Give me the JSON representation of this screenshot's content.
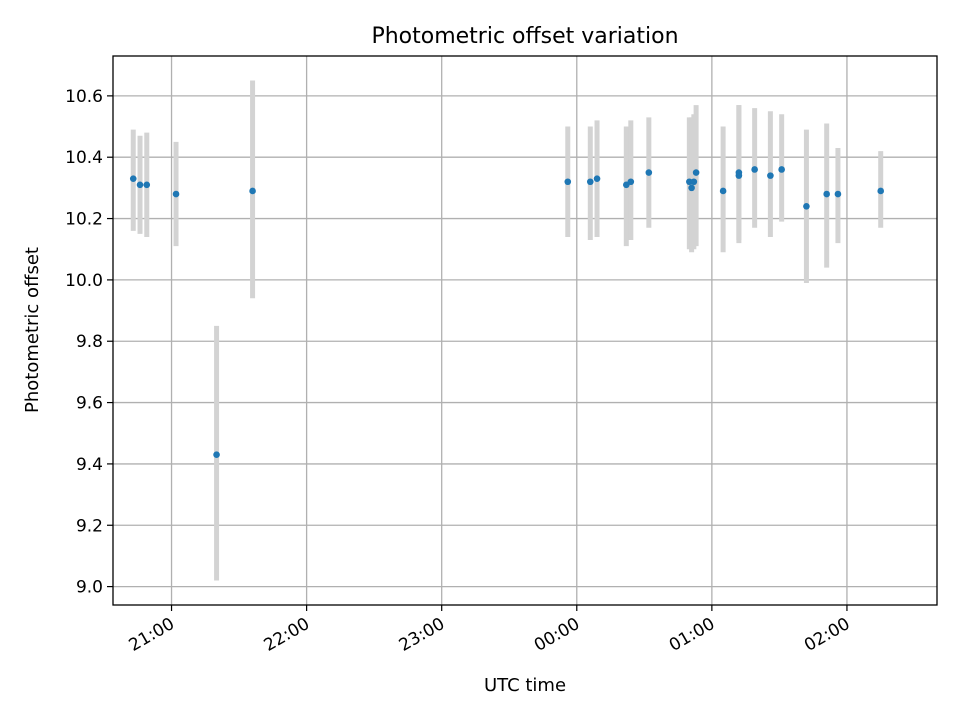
{
  "chart_data": {
    "type": "scatter",
    "title": "Photometric offset variation",
    "xlabel": "UTC time",
    "ylabel": "Photometric offset",
    "grid": true,
    "legend": "none",
    "x_unit": "UTC time (HH:MM, evening to next morning)",
    "xlim": [
      "20:34",
      "02:40"
    ],
    "ylim": [
      8.94,
      10.73
    ],
    "x_ticks": [
      "21:00",
      "22:00",
      "23:00",
      "00:00",
      "01:00",
      "02:00"
    ],
    "y_ticks": [
      "9.0",
      "9.2",
      "9.4",
      "9.6",
      "9.8",
      "10.0",
      "10.2",
      "10.4",
      "10.6"
    ],
    "colors": {
      "points": "#1f77b4",
      "errorbars": "#d3d3d3",
      "grid": "#b0b0b0",
      "axes": "#000000"
    },
    "points": [
      {
        "time": "20:43",
        "y": 10.33,
        "ylow": 10.16,
        "yhigh": 10.49
      },
      {
        "time": "20:46",
        "y": 10.31,
        "ylow": 10.15,
        "yhigh": 10.47
      },
      {
        "time": "20:49",
        "y": 10.31,
        "ylow": 10.14,
        "yhigh": 10.48
      },
      {
        "time": "21:02",
        "y": 10.28,
        "ylow": 10.11,
        "yhigh": 10.45
      },
      {
        "time": "21:20",
        "y": 9.43,
        "ylow": 9.02,
        "yhigh": 9.85
      },
      {
        "time": "21:36",
        "y": 10.29,
        "ylow": 9.94,
        "yhigh": 10.65
      },
      {
        "time": "23:56",
        "y": 10.32,
        "ylow": 10.14,
        "yhigh": 10.5
      },
      {
        "time": "00:06",
        "y": 10.32,
        "ylow": 10.13,
        "yhigh": 10.5
      },
      {
        "time": "00:09",
        "y": 10.33,
        "ylow": 10.14,
        "yhigh": 10.52
      },
      {
        "time": "00:22",
        "y": 10.31,
        "ylow": 10.11,
        "yhigh": 10.5
      },
      {
        "time": "00:24",
        "y": 10.32,
        "ylow": 10.13,
        "yhigh": 10.52
      },
      {
        "time": "00:32",
        "y": 10.35,
        "ylow": 10.17,
        "yhigh": 10.53
      },
      {
        "time": "00:50",
        "y": 10.32,
        "ylow": 10.1,
        "yhigh": 10.53
      },
      {
        "time": "00:51",
        "y": 10.3,
        "ylow": 10.09,
        "yhigh": 10.53
      },
      {
        "time": "00:52",
        "y": 10.32,
        "ylow": 10.1,
        "yhigh": 10.54
      },
      {
        "time": "00:53",
        "y": 10.35,
        "ylow": 10.11,
        "yhigh": 10.57
      },
      {
        "time": "01:05",
        "y": 10.29,
        "ylow": 10.09,
        "yhigh": 10.5
      },
      {
        "time": "01:12",
        "y": 10.34,
        "ylow": 10.12,
        "yhigh": 10.57
      },
      {
        "time": "01:12",
        "y": 10.35,
        "ylow": 10.13,
        "yhigh": 10.57
      },
      {
        "time": "01:19",
        "y": 10.36,
        "ylow": 10.17,
        "yhigh": 10.56
      },
      {
        "time": "01:26",
        "y": 10.34,
        "ylow": 10.14,
        "yhigh": 10.55
      },
      {
        "time": "01:31",
        "y": 10.36,
        "ylow": 10.19,
        "yhigh": 10.54
      },
      {
        "time": "01:42",
        "y": 10.24,
        "ylow": 9.99,
        "yhigh": 10.49
      },
      {
        "time": "01:51",
        "y": 10.28,
        "ylow": 10.04,
        "yhigh": 10.51
      },
      {
        "time": "01:56",
        "y": 10.28,
        "ylow": 10.12,
        "yhigh": 10.43
      },
      {
        "time": "02:15",
        "y": 10.29,
        "ylow": 10.17,
        "yhigh": 10.42
      }
    ]
  }
}
